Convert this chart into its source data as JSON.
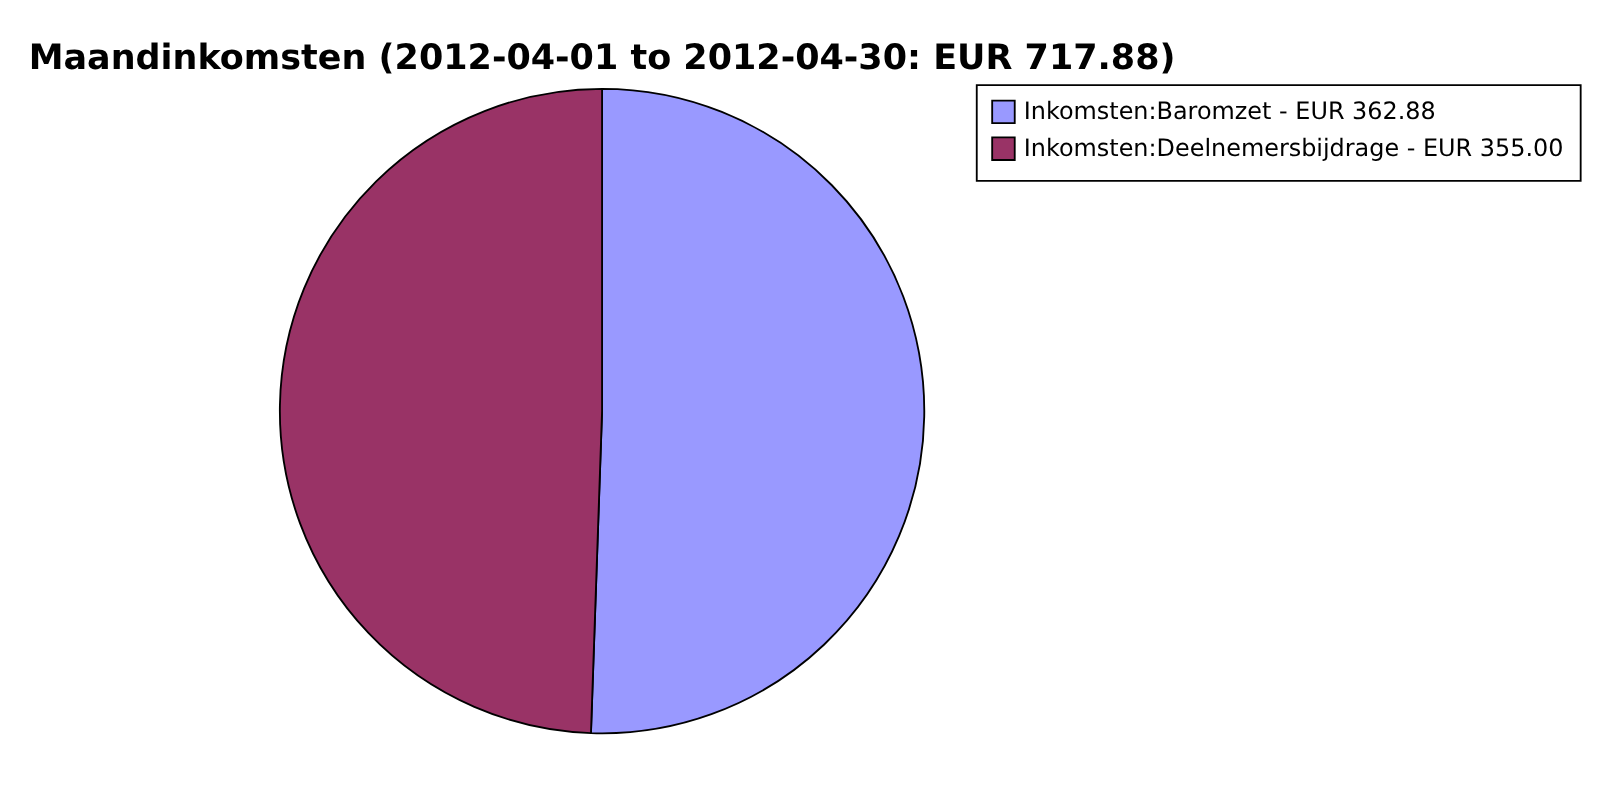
{
  "chart_data": {
    "type": "pie",
    "title": "Maandinkomsten (2012-04-01 to 2012-04-30: EUR 717.88)",
    "categories": [
      "Inkomsten:Baromzet - EUR 362.88",
      "Inkomsten:Deelnemersbijdrage - EUR 355.00"
    ],
    "values": [
      362.88,
      355.0
    ],
    "colors": [
      "#9999ff",
      "#993366"
    ],
    "legend": "right"
  }
}
